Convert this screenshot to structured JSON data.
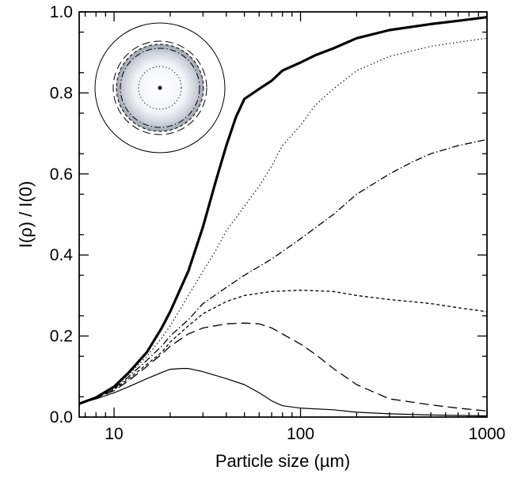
{
  "chart_data": {
    "type": "line",
    "title": "",
    "xlabel": "Particle size (µm)",
    "ylabel": "I(ρ) / I(0)",
    "xscale": "log",
    "xlim": [
      6.5,
      1000
    ],
    "ylim": [
      0,
      1.0
    ],
    "grid": false,
    "legend": "none",
    "x_ticks": [
      10,
      100,
      1000
    ],
    "x_tick_labels": [
      "10",
      "100",
      "1000"
    ],
    "y_ticks": [
      0.0,
      0.2,
      0.4,
      0.6,
      0.8,
      1.0
    ],
    "y_tick_labels": [
      "0.0",
      "0.2",
      "0.4",
      "0.6",
      "0.8",
      "1.0"
    ],
    "series": [
      {
        "style": "thick-solid",
        "points": [
          [
            6.5,
            0.033
          ],
          [
            8,
            0.048
          ],
          [
            10,
            0.075
          ],
          [
            12,
            0.11
          ],
          [
            15,
            0.16
          ],
          [
            18,
            0.22
          ],
          [
            20,
            0.26
          ],
          [
            25,
            0.36
          ],
          [
            30,
            0.47
          ],
          [
            35,
            0.58
          ],
          [
            40,
            0.67
          ],
          [
            45,
            0.74
          ],
          [
            50,
            0.785
          ],
          [
            60,
            0.81
          ],
          [
            70,
            0.83
          ],
          [
            80,
            0.855
          ],
          [
            100,
            0.875
          ],
          [
            120,
            0.893
          ],
          [
            150,
            0.91
          ],
          [
            200,
            0.935
          ],
          [
            300,
            0.955
          ],
          [
            500,
            0.97
          ],
          [
            700,
            0.978
          ],
          [
            1000,
            0.987
          ]
        ]
      },
      {
        "style": "dotted",
        "points": [
          [
            6.5,
            0.033
          ],
          [
            8,
            0.048
          ],
          [
            10,
            0.075
          ],
          [
            12,
            0.105
          ],
          [
            15,
            0.15
          ],
          [
            18,
            0.195
          ],
          [
            20,
            0.225
          ],
          [
            25,
            0.3
          ],
          [
            30,
            0.36
          ],
          [
            35,
            0.41
          ],
          [
            40,
            0.46
          ],
          [
            50,
            0.52
          ],
          [
            60,
            0.57
          ],
          [
            70,
            0.62
          ],
          [
            80,
            0.67
          ],
          [
            100,
            0.72
          ],
          [
            120,
            0.77
          ],
          [
            150,
            0.81
          ],
          [
            200,
            0.855
          ],
          [
            300,
            0.89
          ],
          [
            500,
            0.915
          ],
          [
            700,
            0.925
          ],
          [
            1000,
            0.935
          ]
        ]
      },
      {
        "style": "dash-dot",
        "points": [
          [
            6.5,
            0.033
          ],
          [
            8,
            0.048
          ],
          [
            10,
            0.07
          ],
          [
            12,
            0.1
          ],
          [
            15,
            0.14
          ],
          [
            18,
            0.175
          ],
          [
            20,
            0.2
          ],
          [
            25,
            0.24
          ],
          [
            30,
            0.28
          ],
          [
            40,
            0.32
          ],
          [
            50,
            0.35
          ],
          [
            70,
            0.39
          ],
          [
            100,
            0.44
          ],
          [
            150,
            0.5
          ],
          [
            200,
            0.55
          ],
          [
            300,
            0.6
          ],
          [
            400,
            0.63
          ],
          [
            500,
            0.65
          ],
          [
            700,
            0.67
          ],
          [
            1000,
            0.685
          ]
        ]
      },
      {
        "style": "short-dash",
        "points": [
          [
            6.5,
            0.033
          ],
          [
            8,
            0.047
          ],
          [
            10,
            0.068
          ],
          [
            12,
            0.095
          ],
          [
            15,
            0.13
          ],
          [
            18,
            0.16
          ],
          [
            20,
            0.185
          ],
          [
            25,
            0.225
          ],
          [
            30,
            0.255
          ],
          [
            40,
            0.285
          ],
          [
            50,
            0.3
          ],
          [
            70,
            0.31
          ],
          [
            100,
            0.313
          ],
          [
            150,
            0.31
          ],
          [
            200,
            0.3
          ],
          [
            300,
            0.29
          ],
          [
            500,
            0.28
          ],
          [
            700,
            0.27
          ],
          [
            1000,
            0.26
          ]
        ]
      },
      {
        "style": "long-dash",
        "points": [
          [
            6.5,
            0.033
          ],
          [
            8,
            0.047
          ],
          [
            10,
            0.065
          ],
          [
            12,
            0.09
          ],
          [
            15,
            0.125
          ],
          [
            18,
            0.155
          ],
          [
            20,
            0.175
          ],
          [
            25,
            0.205
          ],
          [
            30,
            0.22
          ],
          [
            40,
            0.23
          ],
          [
            50,
            0.232
          ],
          [
            60,
            0.23
          ],
          [
            70,
            0.22
          ],
          [
            80,
            0.205
          ],
          [
            100,
            0.18
          ],
          [
            120,
            0.155
          ],
          [
            150,
            0.12
          ],
          [
            200,
            0.08
          ],
          [
            300,
            0.045
          ],
          [
            500,
            0.03
          ],
          [
            700,
            0.022
          ],
          [
            1000,
            0.015
          ]
        ]
      },
      {
        "style": "thin-solid",
        "points": [
          [
            6.5,
            0.033
          ],
          [
            8,
            0.045
          ],
          [
            10,
            0.06
          ],
          [
            12,
            0.075
          ],
          [
            15,
            0.095
          ],
          [
            18,
            0.11
          ],
          [
            20,
            0.118
          ],
          [
            23,
            0.12
          ],
          [
            25,
            0.12
          ],
          [
            30,
            0.112
          ],
          [
            40,
            0.095
          ],
          [
            50,
            0.08
          ],
          [
            60,
            0.06
          ],
          [
            70,
            0.04
          ],
          [
            80,
            0.028
          ],
          [
            100,
            0.022
          ],
          [
            150,
            0.018
          ],
          [
            200,
            0.012
          ],
          [
            300,
            0.008
          ],
          [
            500,
            0.005
          ],
          [
            1000,
            0.003
          ]
        ]
      }
    ]
  }
}
